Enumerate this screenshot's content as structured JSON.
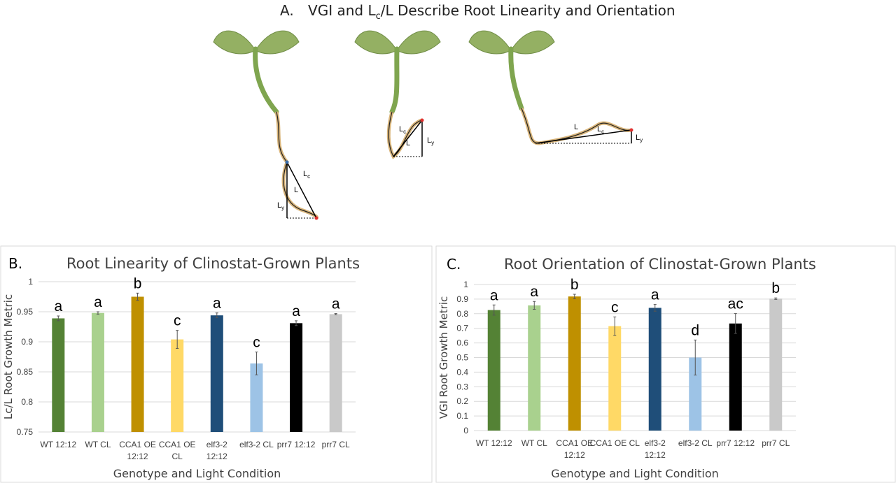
{
  "panel_a": {
    "letter": "A.",
    "title_pre": "VGI and L",
    "title_sub": "c",
    "title_post": "/L Describe Root Linearity and Orientation",
    "labels": {
      "L": "L",
      "Lc_main": "L",
      "Lc_sub": "c",
      "Ly_main": "L",
      "Ly_sub": "y"
    }
  },
  "chart_data": [
    {
      "type": "bar",
      "panel_letter": "B.",
      "title": "Root Linearity of Clinostat-Grown Plants",
      "xlabel": "Genotype and Light Condition",
      "ylabel": "Lc/L Root Growth Metric",
      "ylim": [
        0.75,
        1
      ],
      "yticks": [
        "0.75",
        "0.8",
        "0.85",
        "0.9",
        "0.95",
        "1"
      ],
      "grid": true,
      "categories": [
        [
          "WT 12:12"
        ],
        [
          "WT CL"
        ],
        [
          "CCA1 OE",
          "12:12"
        ],
        [
          "CCA1 OE",
          "CL"
        ],
        [
          "elf3-2",
          "12:12"
        ],
        [
          "elf3-2 CL"
        ],
        [
          "prr7 12:12"
        ],
        [
          "prr7 CL"
        ]
      ],
      "values": [
        0.939,
        0.948,
        0.975,
        0.904,
        0.944,
        0.864,
        0.931,
        0.946
      ],
      "errors": [
        0.004,
        0.002,
        0.006,
        0.015,
        0.004,
        0.019,
        0.004,
        0.001
      ],
      "significance": [
        "a",
        "a",
        "b",
        "c",
        "a",
        "c",
        "a",
        "a"
      ],
      "colors": [
        "#548235",
        "#a9d18e",
        "#bf9000",
        "#ffd966",
        "#1f4e79",
        "#9dc3e6",
        "#000000",
        "#c9c9c9"
      ]
    },
    {
      "type": "bar",
      "panel_letter": "C.",
      "title": "Root Orientation of Clinostat-Grown Plants",
      "xlabel": "Genotype and Light Condition",
      "ylabel": "VGI Root Growth Metric",
      "ylim": [
        0,
        1
      ],
      "yticks": [
        "0",
        "0.1",
        "0.2",
        "0.3",
        "0.4",
        "0.5",
        "0.6",
        "0.7",
        "0.8",
        "0.9",
        "1"
      ],
      "grid": true,
      "categories": [
        [
          "WT 12:12"
        ],
        [
          "WT CL"
        ],
        [
          "CCA1 OE",
          "12:12"
        ],
        [
          "CCA1 OE CL"
        ],
        [
          "elf3-2",
          "12:12"
        ],
        [
          "elf3-2 CL"
        ],
        [
          "prr7 12:12"
        ],
        [
          "prr7 CL"
        ]
      ],
      "values": [
        0.825,
        0.857,
        0.918,
        0.715,
        0.84,
        0.5,
        0.733,
        0.903
      ],
      "errors": [
        0.035,
        0.027,
        0.015,
        0.063,
        0.023,
        0.12,
        0.068,
        0.005
      ],
      "significance": [
        "a",
        "a",
        "b",
        "c",
        "a",
        "d",
        "ac",
        "b"
      ],
      "colors": [
        "#548235",
        "#a9d18e",
        "#bf9000",
        "#ffd966",
        "#1f4e79",
        "#9dc3e6",
        "#000000",
        "#c9c9c9"
      ]
    }
  ]
}
